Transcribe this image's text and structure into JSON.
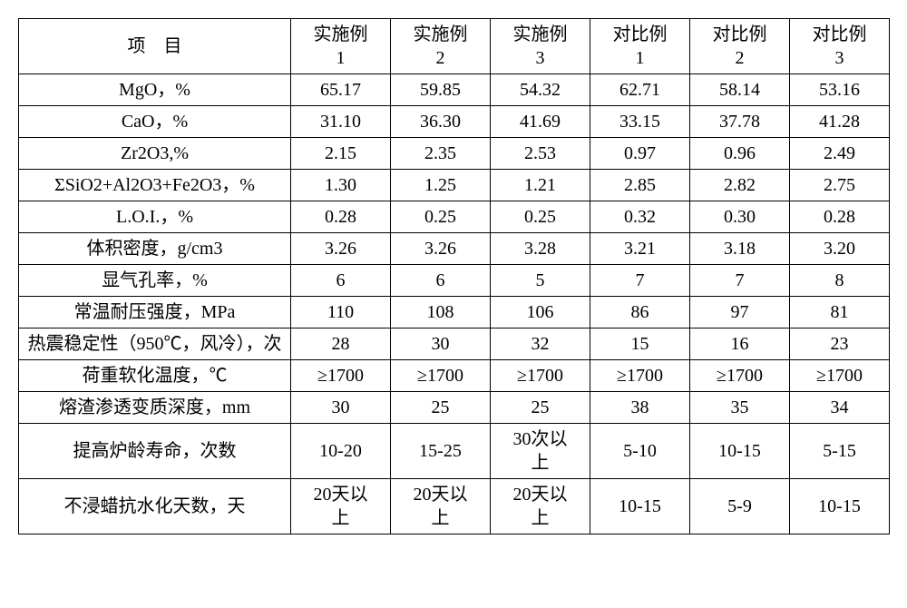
{
  "table": {
    "header_label": "项　目",
    "columns": [
      "实施例\n1",
      "实施例\n2",
      "实施例\n3",
      "对比例\n1",
      "对比例\n2",
      "对比例\n3"
    ],
    "rows": [
      {
        "label": "MgO，%",
        "cells": [
          "65.17",
          "59.85",
          "54.32",
          "62.71",
          "58.14",
          "53.16"
        ]
      },
      {
        "label": "CaO，%",
        "cells": [
          "31.10",
          "36.30",
          "41.69",
          "33.15",
          "37.78",
          "41.28"
        ]
      },
      {
        "label": "Zr2O3,%",
        "cells": [
          "2.15",
          "2.35",
          "2.53",
          "0.97",
          "0.96",
          "2.49"
        ]
      },
      {
        "label": "ΣSiO2+Al2O3+Fe2O3，%",
        "cells": [
          "1.30",
          "1.25",
          "1.21",
          "2.85",
          "2.82",
          "2.75"
        ]
      },
      {
        "label": "L.O.I.，%",
        "cells": [
          "0.28",
          "0.25",
          "0.25",
          "0.32",
          "0.30",
          "0.28"
        ]
      },
      {
        "label": "体积密度，g/cm3",
        "cells": [
          "3.26",
          "3.26",
          "3.28",
          "3.21",
          "3.18",
          "3.20"
        ]
      },
      {
        "label": "显气孔率，%",
        "cells": [
          "6",
          "6",
          "5",
          "7",
          "7",
          "8"
        ]
      },
      {
        "label": "常温耐压强度，MPa",
        "cells": [
          "110",
          "108",
          "106",
          "86",
          "97",
          "81"
        ]
      },
      {
        "label": "热震稳定性（950℃，风冷），次",
        "cells": [
          "28",
          "30",
          "32",
          "15",
          "16",
          "23"
        ]
      },
      {
        "label": "荷重软化温度，℃",
        "cells": [
          "≥1700",
          "≥1700",
          "≥1700",
          "≥1700",
          "≥1700",
          "≥1700"
        ]
      },
      {
        "label": "熔渣渗透变质深度，mm",
        "cells": [
          "30",
          "25",
          "25",
          "38",
          "35",
          "34"
        ]
      },
      {
        "label": "提高炉龄寿命，次数",
        "cells": [
          "10-20",
          "15-25",
          "30次以\n上",
          "5-10",
          "10-15",
          "5-15"
        ]
      },
      {
        "label": "不浸蜡抗水化天数，天",
        "cells": [
          "20天以\n上",
          "20天以\n上",
          "20天以\n上",
          "10-15",
          "5-9",
          "10-15"
        ]
      }
    ],
    "style": {
      "font_size_pt": 20,
      "border_color": "#000000",
      "background": "#ffffff",
      "text_color": "#000000"
    }
  }
}
